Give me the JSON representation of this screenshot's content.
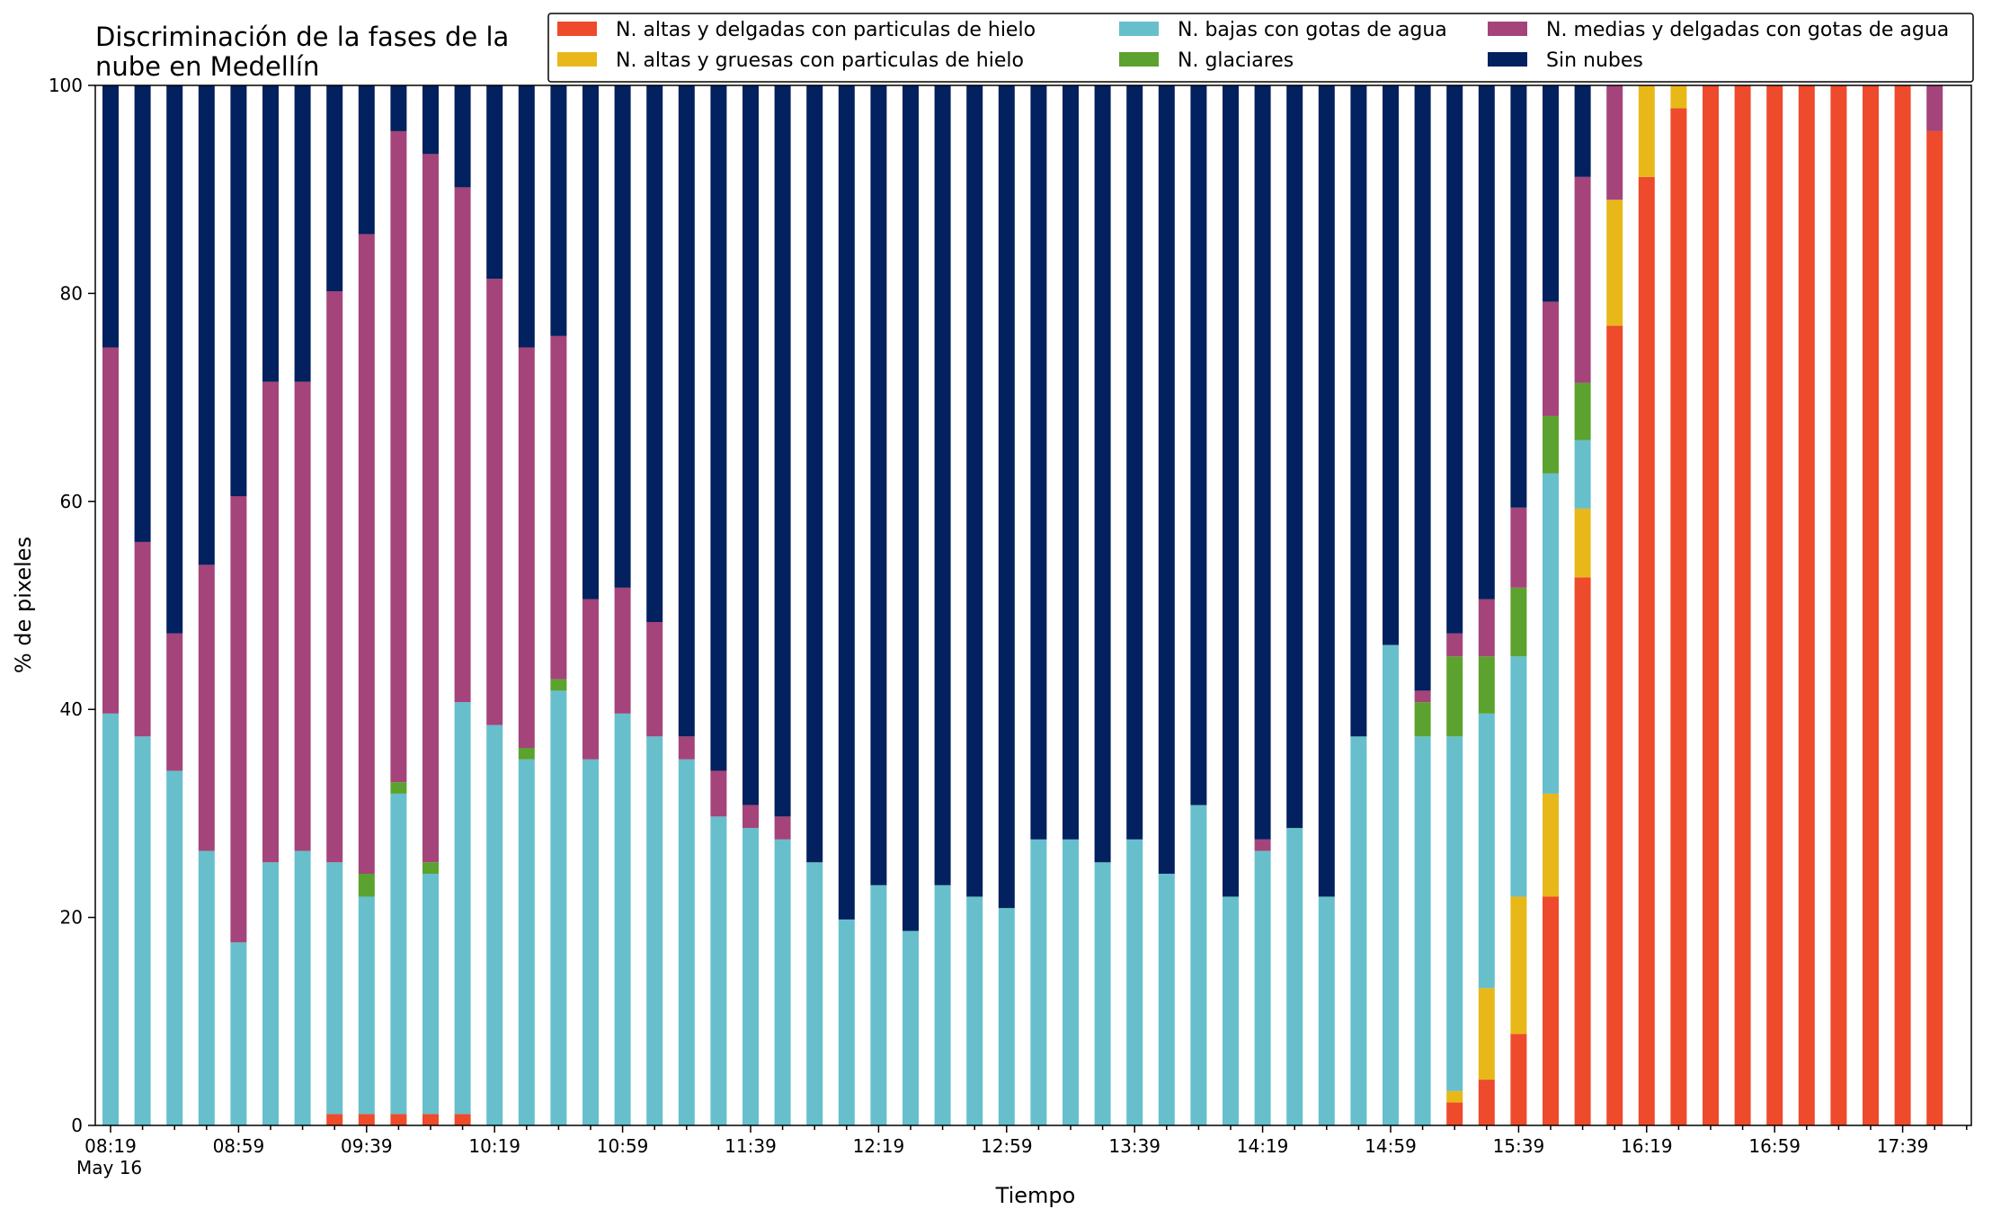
{
  "chart_data": {
    "type": "bar",
    "stacked": true,
    "title": [
      "Discriminación de la fases de la",
      "nube en Medellín"
    ],
    "xlabel": "Tiempo",
    "ylabel": "% de pixeles",
    "ylim": [
      0,
      100
    ],
    "yticks": [
      0,
      20,
      40,
      60,
      80,
      100
    ],
    "grid": false,
    "legend_position": "top-right",
    "date_label": "May 16",
    "categories": [
      "08:19",
      "08:29",
      "08:39",
      "08:49",
      "08:59",
      "09:09",
      "09:19",
      "09:29",
      "09:39",
      "09:49",
      "09:59",
      "10:09",
      "10:19",
      "10:29",
      "10:39",
      "10:49",
      "10:59",
      "11:09",
      "11:19",
      "11:29",
      "11:39",
      "11:49",
      "11:59",
      "12:09",
      "12:19",
      "12:29",
      "12:39",
      "12:49",
      "12:59",
      "13:09",
      "13:19",
      "13:29",
      "13:39",
      "13:49",
      "13:59",
      "14:09",
      "14:19",
      "14:29",
      "14:39",
      "14:49",
      "14:59",
      "15:09",
      "15:19",
      "15:29",
      "15:39",
      "15:49",
      "15:59",
      "16:09",
      "16:19",
      "16:29",
      "16:39",
      "16:49",
      "16:59",
      "17:09",
      "17:19",
      "17:29",
      "17:39",
      "17:49"
    ],
    "tick_labels": [
      "08:19",
      "08:59",
      "09:39",
      "10:19",
      "10:59",
      "11:39",
      "12:19",
      "12:59",
      "13:39",
      "14:19",
      "14:59",
      "15:39",
      "16:19",
      "16:59",
      "17:39"
    ],
    "series": [
      {
        "name": "N. altas y delgadas con particulas de hielo",
        "color": "#ee4a2c",
        "values": [
          0,
          0,
          0,
          0,
          0,
          0,
          0,
          1.1,
          1.1,
          1.1,
          1.1,
          1.1,
          0,
          0,
          0,
          0,
          0,
          0,
          0,
          0,
          0,
          0,
          0,
          0,
          0,
          0,
          0,
          0,
          0,
          0,
          0,
          0,
          0,
          0,
          0,
          0,
          0,
          0,
          0,
          0,
          0,
          0,
          2.2,
          4.4,
          8.8,
          22.0,
          52.7,
          76.9,
          91.2,
          97.8,
          100,
          100,
          100,
          100,
          100,
          100,
          100,
          95.6
        ]
      },
      {
        "name": "N. altas y gruesas con particulas de hielo",
        "color": "#e8b818",
        "values": [
          0,
          0,
          0,
          0,
          0,
          0,
          0,
          0,
          0,
          0,
          0,
          0,
          0,
          0,
          0,
          0,
          0,
          0,
          0,
          0,
          0,
          0,
          0,
          0,
          0,
          0,
          0,
          0,
          0,
          0,
          0,
          0,
          0,
          0,
          0,
          0,
          0,
          0,
          0,
          0,
          0,
          0,
          1.1,
          8.8,
          13.2,
          9.9,
          6.6,
          12.1,
          8.8,
          2.2,
          0,
          0,
          0,
          0,
          0,
          0,
          0,
          0
        ]
      },
      {
        "name": "N. bajas con gotas de agua",
        "color": "#67bfcb",
        "values": [
          39.6,
          37.4,
          34.1,
          26.4,
          17.6,
          25.3,
          26.4,
          24.2,
          20.9,
          30.8,
          23.1,
          39.6,
          38.5,
          35.2,
          41.8,
          35.2,
          39.6,
          37.4,
          35.2,
          29.7,
          28.6,
          27.5,
          25.3,
          19.8,
          23.1,
          18.7,
          23.1,
          22.0,
          20.9,
          27.5,
          27.5,
          25.3,
          27.5,
          24.2,
          30.8,
          22.0,
          26.4,
          28.6,
          22.0,
          37.4,
          46.2,
          37.4,
          34.1,
          26.4,
          23.1,
          30.8,
          6.6,
          0,
          0,
          0,
          0,
          0,
          0,
          0,
          0,
          0,
          0,
          0
        ]
      },
      {
        "name": "N. glaciares",
        "color": "#5ba22e",
        "values": [
          0,
          0,
          0,
          0,
          0,
          0,
          0,
          0,
          2.2,
          1.1,
          1.1,
          0,
          0,
          1.1,
          1.1,
          0,
          0,
          0,
          0,
          0,
          0,
          0,
          0,
          0,
          0,
          0,
          0,
          0,
          0,
          0,
          0,
          0,
          0,
          0,
          0,
          0,
          0,
          0,
          0,
          0,
          0,
          3.3,
          7.7,
          5.5,
          6.6,
          5.5,
          5.5,
          0,
          0,
          0,
          0,
          0,
          0,
          0,
          0,
          0,
          0,
          0
        ]
      },
      {
        "name": "N. medias y delgadas con gotas de agua",
        "color": "#a4447a",
        "values": [
          35.2,
          18.7,
          13.2,
          27.5,
          42.9,
          46.2,
          45.1,
          54.9,
          61.5,
          62.6,
          68.1,
          49.5,
          42.9,
          38.5,
          33.0,
          15.4,
          12.1,
          11.0,
          2.2,
          4.4,
          2.2,
          2.2,
          0,
          0,
          0,
          0,
          0,
          0,
          0,
          0,
          0,
          0,
          0,
          0,
          0,
          0,
          1.1,
          0,
          0,
          0,
          0,
          1.1,
          2.2,
          5.5,
          7.7,
          11.0,
          19.8,
          11.0,
          0,
          0,
          0,
          0,
          0,
          0,
          0,
          0,
          0,
          4.4
        ]
      },
      {
        "name": "Sin nubes",
        "color": "#03205f",
        "values": [
          25.2,
          43.9,
          52.7,
          46.1,
          39.5,
          28.5,
          28.5,
          19.8,
          14.3,
          4.4,
          6.6,
          9.8,
          18.6,
          25.2,
          24.1,
          49.4,
          48.3,
          51.6,
          62.6,
          65.9,
          69.2,
          70.3,
          74.7,
          80.2,
          76.9,
          81.3,
          76.9,
          78.0,
          79.1,
          72.5,
          72.5,
          74.7,
          72.5,
          75.8,
          69.2,
          78.0,
          72.5,
          71.4,
          78.0,
          62.6,
          53.8,
          58.2,
          52.7,
          49.4,
          40.7,
          30.8,
          8.8,
          0,
          0,
          0,
          0,
          0,
          0,
          0,
          0,
          0,
          0,
          0
        ]
      }
    ]
  }
}
